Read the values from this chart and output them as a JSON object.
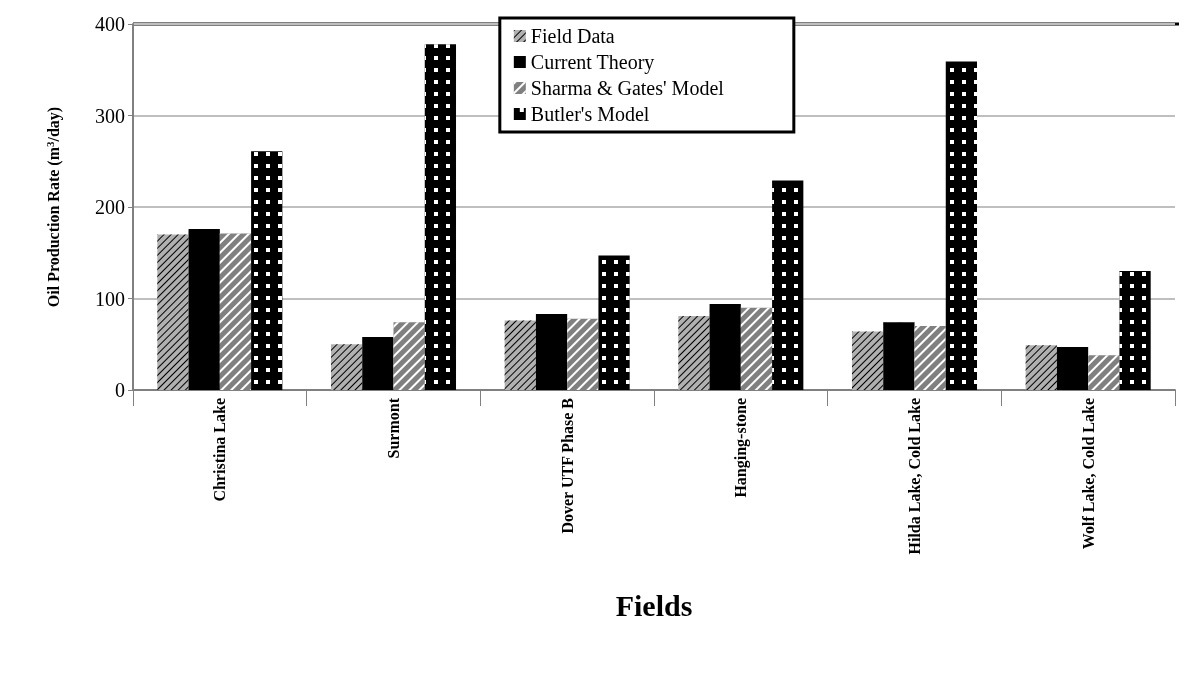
{
  "chart_data": {
    "type": "bar",
    "xlabel": "Fields",
    "ylabel": "Oil Production Rate (m$^{3}$/day)",
    "categories": [
      "Christina Lake",
      "Surmont",
      "Dover UTF Phase B",
      "Hanging-stone",
      "Hilda Lake, Cold Lake",
      "Wolf Lake, Cold Lake"
    ],
    "series": [
      {
        "name": "Field Data",
        "color": "#b0b0b0",
        "values": [
          170,
          50,
          76,
          81,
          64,
          49
        ]
      },
      {
        "name": "Current Theory",
        "color": "#000000",
        "values": [
          176,
          58,
          83,
          94,
          74,
          47
        ]
      },
      {
        "name": "Sharma & Gates' Model",
        "color": "#808080",
        "values": [
          171,
          74,
          78,
          90,
          70,
          38
        ]
      },
      {
        "name": "Butler's Model",
        "color": "#000000",
        "values": [
          261,
          378,
          147,
          229,
          359,
          130
        ]
      }
    ],
    "ylim": [
      0,
      400
    ],
    "yticks": [
      0,
      100,
      200,
      300,
      400
    ],
    "grid": "y",
    "legend": "top"
  }
}
